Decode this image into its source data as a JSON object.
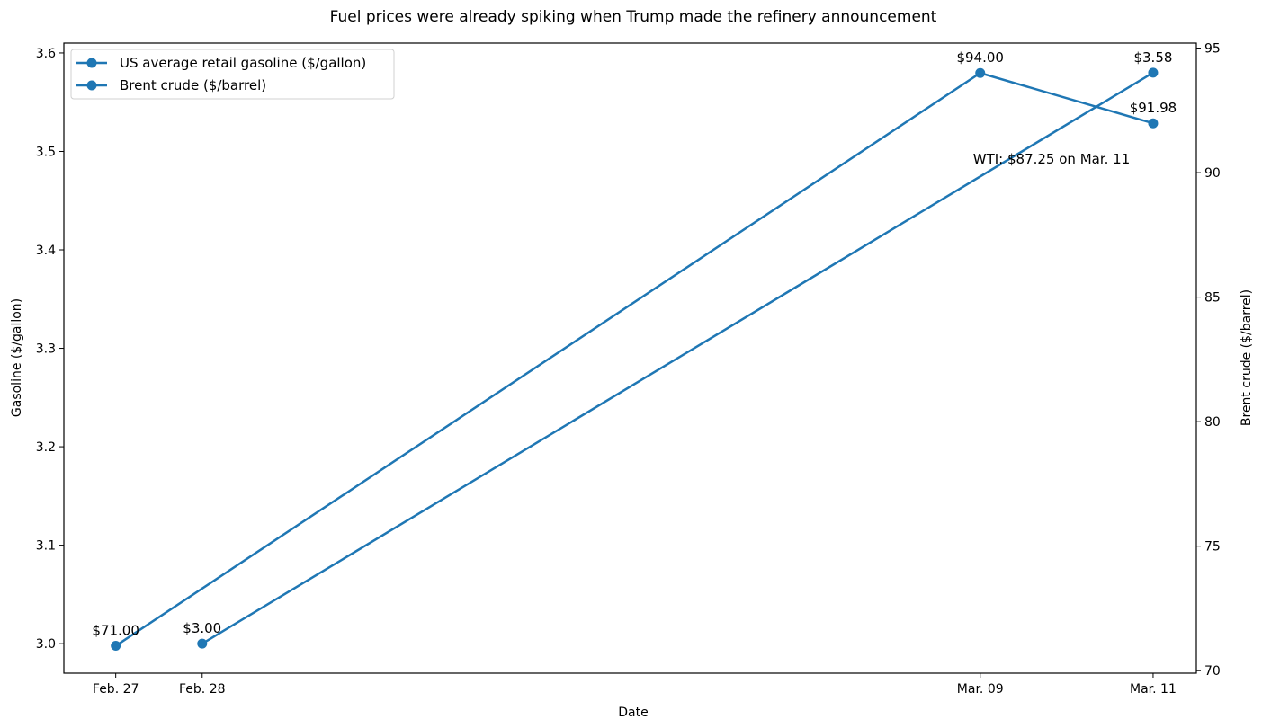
{
  "chart_data": {
    "type": "line",
    "title": "Fuel prices were already spiking when Trump made the refinery announcement",
    "xlabel": "Date",
    "ylabel": "Gasoline ($/gallon)",
    "ylabel_right": "Brent crude ($/barrel)",
    "x_unit": "days since Feb. 27",
    "xlim": [
      -0.6,
      12.5
    ],
    "ylim": [
      2.97,
      3.61
    ],
    "ylim_right": [
      69.9,
      95.2
    ],
    "x_ticks": [
      {
        "x": 0,
        "label": "Feb. 27"
      },
      {
        "x": 1,
        "label": "Feb. 28"
      },
      {
        "x": 10,
        "label": "Mar. 09"
      },
      {
        "x": 12,
        "label": "Mar. 11"
      }
    ],
    "y_ticks": [
      "3.0",
      "3.1",
      "3.2",
      "3.3",
      "3.4",
      "3.5",
      "3.6"
    ],
    "y_ticks_right": [
      "70",
      "75",
      "80",
      "85",
      "90",
      "95"
    ],
    "grid": false,
    "legend_placement": "upper-left",
    "color": "#1f77b4",
    "series": [
      {
        "name": "US average retail gasoline ($/gallon)",
        "axis": "left",
        "x": [
          1,
          12
        ],
        "values": [
          3.0,
          3.58
        ],
        "labels": [
          "$3.00",
          "$3.58"
        ]
      },
      {
        "name": "Brent crude ($/barrel)",
        "axis": "right",
        "x": [
          0,
          10,
          12
        ],
        "values": [
          71.0,
          94.0,
          91.98
        ],
        "labels": [
          "$71.00",
          "$94.00",
          "$91.98"
        ]
      }
    ],
    "annotations": [
      {
        "text": "WTI: $87.25 on Mar. 11"
      }
    ]
  }
}
